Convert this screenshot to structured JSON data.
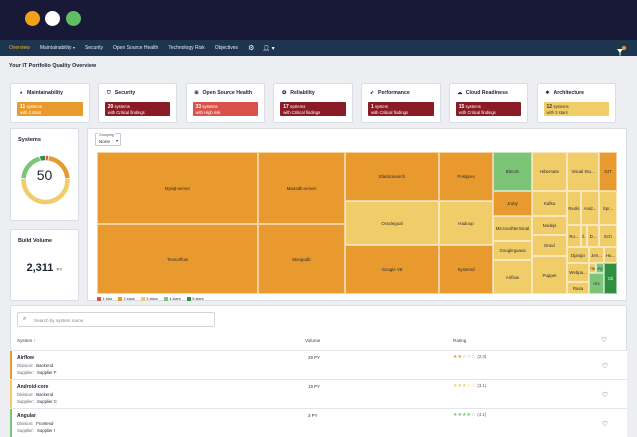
{
  "window": {
    "dots": [
      "#f2a11a",
      "#ffffff",
      "#5fbf60"
    ]
  },
  "nav": {
    "items": [
      "Overview",
      "Maintainability",
      "Security",
      "Open Source Health",
      "Technology Risk",
      "Objectives"
    ],
    "active": "Overview",
    "cart_count": "0"
  },
  "page_title": "Your IT Portfolio Quality Overview",
  "categories": [
    {
      "title": "Maintainability",
      "icon": "palette-icon",
      "count": "11",
      "unit": "systems",
      "detail": "with 2 stars",
      "color": "#e99a2f"
    },
    {
      "title": "Security",
      "icon": "shield-icon",
      "count": "20",
      "unit": "systems",
      "detail": "with Critical findings",
      "color": "#8b1b24"
    },
    {
      "title": "Open Source Health",
      "icon": "plus-square-icon",
      "count": "33",
      "unit": "systems",
      "detail": "with High risk",
      "color": "#d9534a"
    },
    {
      "title": "Reliability",
      "icon": "check-badge-icon",
      "count": "17",
      "unit": "systems",
      "detail": "with Critical findings",
      "color": "#8b1b24"
    },
    {
      "title": "Performance",
      "icon": "rocket-icon",
      "count": "1",
      "unit": "system",
      "detail": "with Critical findings",
      "color": "#8b1b24"
    },
    {
      "title": "Cloud Readiness",
      "icon": "cloud-icon",
      "count": "15",
      "unit": "systems",
      "detail": "with Critical findings",
      "color": "#8b1b24"
    },
    {
      "title": "Architecture",
      "icon": "cubes-icon",
      "count": "12",
      "unit": "systems",
      "detail": "with 3 stars",
      "color": "#f1cd6a"
    }
  ],
  "systems": {
    "title": "Systems",
    "total": "50",
    "segments": [
      {
        "stars": 1,
        "count": 1,
        "color": "#d9534a"
      },
      {
        "stars": 2,
        "count": 11,
        "color": "#e99a2f"
      },
      {
        "stars": 3,
        "count": 26,
        "color": "#f1cd6a"
      },
      {
        "stars": 4,
        "count": 10,
        "color": "#7cc576"
      },
      {
        "stars": 5,
        "count": 2,
        "color": "#2e8f3e"
      }
    ]
  },
  "build_volume": {
    "title": "Build Volume",
    "value": "2,311",
    "unit": "PY"
  },
  "grouping": {
    "label": "Grouping",
    "value": "None"
  },
  "treemap": {
    "tiles": [
      "Mysql-server",
      "Mariadb-server",
      "Elasticsearch",
      "Postgres",
      "Bitcoin",
      "Hibernate",
      "Visual Stu...",
      "GIT",
      "Oraclegoal",
      "Hadoop",
      "Jruby",
      "Kafka",
      "Redis",
      "Andr...",
      "Spr...",
      "Microsoftterminal",
      "Nodejs",
      "Ro...",
      "El...",
      "D...",
      "Ech",
      "Tensorflow",
      "Mongodb",
      "Google V8",
      "Systemd",
      "Googleguava",
      "Druid",
      "Django",
      "Jen...",
      "Hu...",
      "Airflow",
      "Puppet",
      "Webpa...",
      "Fac",
      "Ay",
      "Rasa",
      "Arc",
      "Cli"
    ],
    "legend": [
      "1 star",
      "2 stars",
      "3 stars",
      "4 stars",
      "5 stars"
    ],
    "legend_colors": [
      "#d9534a",
      "#e99a2f",
      "#f1cd6a",
      "#7cc576",
      "#2e8f3e"
    ]
  },
  "table": {
    "search_placeholder": "Search by system name",
    "columns": [
      "System ↑",
      "Volume",
      "Rating"
    ],
    "division_label": "Division:",
    "supplier_label": "Supplier:",
    "rows": [
      {
        "name": "Airflow",
        "division": "Backend",
        "supplier": "Supplier F",
        "volume": "28 PY",
        "stars": "★★☆☆☆",
        "rating": "(2.3)",
        "color": "#e99a2f"
      },
      {
        "name": "Android-core",
        "division": "Backend",
        "supplier": "Supplier C",
        "volume": "19 PY",
        "stars": "★★★☆☆",
        "rating": "(3.1)",
        "color": "#f1cd6a"
      },
      {
        "name": "Angular",
        "division": "Frontend",
        "supplier": "Supplier I",
        "volume": "3 PY",
        "stars": "★★★★☆",
        "rating": "(4.1)",
        "color": "#7cc576"
      }
    ]
  }
}
